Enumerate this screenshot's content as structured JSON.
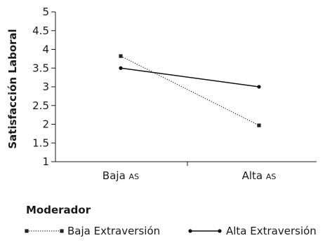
{
  "chart_data": {
    "type": "line",
    "categories": [
      {
        "main": "Baja",
        "sc": "AS"
      },
      {
        "main": "Alta",
        "sc": "AS"
      }
    ],
    "ylabel": "Satisfacción Laboral",
    "ylim": [
      1,
      5
    ],
    "yticks": [
      "1",
      "1.5",
      "2",
      "2.5",
      "3",
      "3.5",
      "4",
      "4.5",
      "5"
    ],
    "series": [
      {
        "name": "Baja Extraversión",
        "values": [
          3.82,
          1.97
        ],
        "style": "dotted",
        "marker": "square",
        "color": "#222222"
      },
      {
        "name": "Alta Extraversión",
        "values": [
          3.5,
          3.0
        ],
        "style": "solid",
        "marker": "circle",
        "color": "#111111"
      }
    ],
    "grid": false
  },
  "legend": {
    "title": "Moderador"
  }
}
